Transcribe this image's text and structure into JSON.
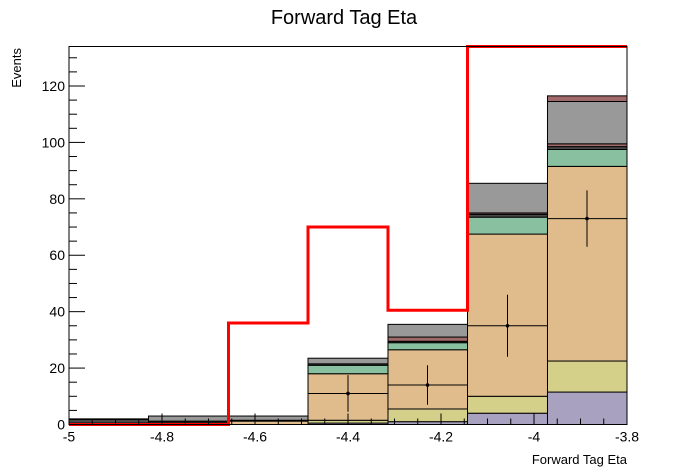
{
  "chart_data": {
    "type": "bar",
    "title": "Forward Tag Eta",
    "xlabel": "Forward Tag Eta",
    "ylabel": "Events",
    "xlim": [
      -5,
      -3.8
    ],
    "ylim": [
      0,
      134
    ],
    "bin_edges": [
      -5,
      -4.829,
      -4.657,
      -4.486,
      -4.314,
      -4.143,
      -3.971,
      -3.8
    ],
    "x_ticks": [
      {
        "value": -5,
        "label": "-5"
      },
      {
        "value": -4.8,
        "label": "-4.8"
      },
      {
        "value": -4.6,
        "label": "-4.6"
      },
      {
        "value": -4.4,
        "label": "-4.4"
      },
      {
        "value": -4.2,
        "label": "-4.2"
      },
      {
        "value": -4,
        "label": "-4"
      },
      {
        "value": -3.8,
        "label": "-3.8"
      }
    ],
    "y_ticks": [
      {
        "value": 0,
        "label": "0"
      },
      {
        "value": 20,
        "label": "20"
      },
      {
        "value": 40,
        "label": "40"
      },
      {
        "value": 60,
        "label": "60"
      },
      {
        "value": 80,
        "label": "80"
      },
      {
        "value": 100,
        "label": "100"
      },
      {
        "value": 120,
        "label": "120"
      }
    ],
    "stack_series": [
      {
        "color": "#a8a2c0",
        "values": [
          0,
          0,
          0,
          0.5,
          1,
          4,
          11.5
        ]
      },
      {
        "color": "#d4d08a",
        "values": [
          0,
          0,
          0,
          1,
          4.5,
          6,
          11
        ]
      },
      {
        "color": "#e0bb8c",
        "values": [
          0.5,
          0.8,
          1.2,
          16.5,
          21,
          57.5,
          69
        ]
      },
      {
        "color": "#88c0a0",
        "values": [
          0,
          0,
          0,
          3,
          2.5,
          6,
          6
        ]
      },
      {
        "color": "#4a4a4a",
        "values": [
          1.3,
          0.4,
          0.3,
          0.5,
          0.5,
          1,
          1
        ]
      },
      {
        "color": "#a06a6a",
        "values": [
          0,
          0,
          0,
          0,
          1.5,
          0.5,
          1
        ]
      },
      {
        "color": "#999999",
        "values": [
          0.2,
          1.8,
          1.5,
          2,
          4.5,
          10.5,
          15
        ]
      },
      {
        "color": "#a06a6a",
        "values": [
          0,
          0,
          0,
          0,
          0,
          0,
          2
        ]
      }
    ],
    "data_points": {
      "x": [
        -4.4,
        -4.229,
        -4.057,
        -3.886
      ],
      "y": [
        11,
        14,
        35,
        73
      ],
      "err": [
        6.5,
        7,
        11,
        10
      ]
    },
    "signal_line": {
      "color": "#ff0000",
      "values": [
        0,
        0,
        36,
        70,
        40.5,
        134,
        134
      ]
    }
  }
}
